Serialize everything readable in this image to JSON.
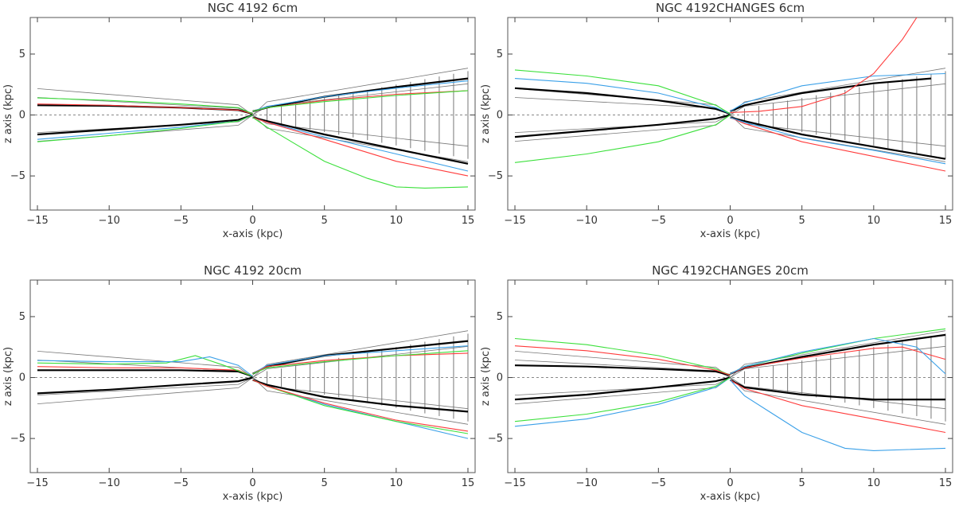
{
  "chart_data": [
    {
      "type": "line",
      "title": "NGC 4192 6cm",
      "xlabel": "x-axis (kpc)",
      "ylabel": "z axis (kpc)",
      "xlim": [
        -15.5,
        15.5
      ],
      "ylim": [
        -7.8,
        8
      ],
      "xticks": [
        -15,
        -10,
        -5,
        0,
        5,
        10,
        15
      ],
      "yticks": [
        -5,
        0,
        5
      ],
      "tick_labels_x": [
        "−15",
        "−10",
        "−5",
        "0",
        "5",
        "10",
        "15"
      ],
      "tick_labels_y": [
        "−5",
        "0",
        "5"
      ],
      "series": [
        {
          "name": "mean-upper-left",
          "color": "#000000",
          "x": [
            -15,
            -10,
            -5,
            -1,
            0
          ],
          "values": [
            0.8,
            0.75,
            0.6,
            0.4,
            0.1
          ]
        },
        {
          "name": "red-upper-left",
          "color": "#ff3b3b",
          "x": [
            -15,
            -10,
            -5,
            -1,
            0
          ],
          "values": [
            0.9,
            0.8,
            0.6,
            0.4,
            0.1
          ]
        },
        {
          "name": "green-upper-left",
          "color": "#3be03b",
          "x": [
            -15,
            -10,
            -5,
            -1,
            0
          ],
          "values": [
            1.4,
            1.2,
            0.9,
            0.6,
            0.1
          ]
        },
        {
          "name": "mean-lower-left",
          "color": "#000000",
          "x": [
            -15,
            -10,
            -5,
            -1,
            0
          ],
          "values": [
            -1.6,
            -1.2,
            -0.8,
            -0.4,
            0
          ]
        },
        {
          "name": "blue-lower-left",
          "color": "#3aa0e8",
          "x": [
            -15,
            -10,
            -5,
            -1,
            0
          ],
          "values": [
            -2.0,
            -1.5,
            -1.0,
            -0.5,
            0
          ]
        },
        {
          "name": "green-lower-left",
          "color": "#3be03b",
          "x": [
            -15,
            -10,
            -5,
            -1,
            0
          ],
          "values": [
            -2.2,
            -1.7,
            -1.1,
            -0.5,
            0
          ]
        },
        {
          "name": "mean-upper-right",
          "color": "#000000",
          "x": [
            0,
            1,
            5,
            10,
            15
          ],
          "values": [
            0.3,
            0.6,
            1.5,
            2.3,
            3.0
          ]
        },
        {
          "name": "blue-upper-right",
          "color": "#3aa0e8",
          "x": [
            0,
            1,
            5,
            10,
            15
          ],
          "values": [
            0.3,
            0.7,
            1.5,
            2.2,
            2.8
          ]
        },
        {
          "name": "red-upper-right",
          "color": "#ff3b3b",
          "x": [
            0,
            1,
            5,
            10,
            15
          ],
          "values": [
            0.3,
            0.6,
            1.2,
            1.7,
            2.0
          ]
        },
        {
          "name": "green-upper-right",
          "color": "#3be03b",
          "x": [
            0,
            1,
            5,
            10,
            15
          ],
          "values": [
            0.3,
            0.6,
            1.1,
            1.6,
            2.0
          ]
        },
        {
          "name": "mean-lower-right",
          "color": "#000000",
          "x": [
            0,
            1,
            5,
            10,
            15
          ],
          "values": [
            -0.2,
            -0.5,
            -1.6,
            -2.8,
            -4.0
          ]
        },
        {
          "name": "blue-lower-right",
          "color": "#3aa0e8",
          "x": [
            0,
            1,
            5,
            10,
            15
          ],
          "values": [
            -0.2,
            -0.6,
            -1.8,
            -3.2,
            -4.6
          ]
        },
        {
          "name": "red-lower-right",
          "color": "#ff3b3b",
          "x": [
            0,
            1,
            5,
            10,
            15
          ],
          "values": [
            -0.2,
            -0.6,
            -2.0,
            -3.8,
            -5.0
          ]
        },
        {
          "name": "green-lower-right",
          "color": "#3be03b",
          "x": [
            0,
            1,
            3,
            5,
            8,
            10,
            12,
            15
          ],
          "values": [
            -0.2,
            -1.0,
            -2.4,
            -3.8,
            -5.2,
            -5.9,
            -6.0,
            -5.9
          ]
        }
      ]
    },
    {
      "type": "line",
      "title": "NGC 4192CHANGES 6cm",
      "xlabel": "x-axis (kpc)",
      "ylabel": "z axis (kpc)",
      "xlim": [
        -15.5,
        15.5
      ],
      "ylim": [
        -7.8,
        8
      ],
      "xticks": [
        -15,
        -10,
        -5,
        0,
        5,
        10,
        15
      ],
      "yticks": [
        -5,
        0,
        5
      ],
      "tick_labels_x": [
        "−15",
        "−10",
        "−5",
        "0",
        "5",
        "10",
        "15"
      ],
      "tick_labels_y": [
        "−5",
        "0",
        "5"
      ],
      "series": [
        {
          "name": "mean-upper-left",
          "color": "#000000",
          "x": [
            -15,
            -10,
            -5,
            -1,
            0
          ],
          "values": [
            2.2,
            1.8,
            1.2,
            0.5,
            0.1
          ]
        },
        {
          "name": "blue-upper-left",
          "color": "#3aa0e8",
          "x": [
            -15,
            -10,
            -5,
            -1,
            0
          ],
          "values": [
            3.0,
            2.6,
            1.8,
            0.6,
            0.1
          ]
        },
        {
          "name": "green-upper-left",
          "color": "#3be03b",
          "x": [
            -15,
            -10,
            -5,
            -1,
            0
          ],
          "values": [
            3.7,
            3.2,
            2.4,
            0.8,
            0.1
          ]
        },
        {
          "name": "mean-lower-left",
          "color": "#000000",
          "x": [
            -15,
            -10,
            -5,
            -1,
            0
          ],
          "values": [
            -1.8,
            -1.3,
            -0.8,
            -0.3,
            0
          ]
        },
        {
          "name": "green-lower-left",
          "color": "#3be03b",
          "x": [
            -15,
            -10,
            -5,
            -1,
            0
          ],
          "values": [
            -3.9,
            -3.2,
            -2.2,
            -0.8,
            0
          ]
        },
        {
          "name": "mean-upper-right",
          "color": "#000000",
          "x": [
            0,
            1,
            5,
            10,
            14
          ],
          "values": [
            0.3,
            0.8,
            1.8,
            2.6,
            3.0
          ]
        },
        {
          "name": "blue-upper-right",
          "color": "#3aa0e8",
          "x": [
            0,
            1,
            5,
            10,
            15
          ],
          "values": [
            0.3,
            1.0,
            2.4,
            3.2,
            3.4
          ]
        },
        {
          "name": "red-upper-right",
          "color": "#ff3b3b",
          "x": [
            0,
            2,
            5,
            8,
            10,
            12,
            13
          ],
          "values": [
            0.2,
            0.3,
            0.7,
            1.8,
            3.4,
            6.2,
            8.0
          ]
        },
        {
          "name": "mean-lower-right",
          "color": "#000000",
          "x": [
            0,
            1,
            5,
            10,
            15
          ],
          "values": [
            -0.2,
            -0.5,
            -1.6,
            -2.6,
            -3.6
          ]
        },
        {
          "name": "red-lower-right",
          "color": "#ff3b3b",
          "x": [
            0,
            1,
            5,
            10,
            15
          ],
          "values": [
            -0.2,
            -0.7,
            -2.2,
            -3.4,
            -4.6
          ]
        },
        {
          "name": "blue-lower-right",
          "color": "#3aa0e8",
          "x": [
            0,
            1,
            5,
            10,
            15
          ],
          "values": [
            -0.2,
            -0.6,
            -1.9,
            -2.9,
            -4.0
          ]
        }
      ]
    },
    {
      "type": "line",
      "title": "NGC 4192 20cm",
      "xlabel": "x-axis (kpc)",
      "ylabel": "z axis (kpc)",
      "xlim": [
        -15.5,
        15.5
      ],
      "ylim": [
        -7.8,
        8
      ],
      "xticks": [
        -15,
        -10,
        -5,
        0,
        5,
        10,
        15
      ],
      "yticks": [
        -5,
        0,
        5
      ],
      "tick_labels_x": [
        "−15",
        "−10",
        "−5",
        "0",
        "5",
        "10",
        "15"
      ],
      "tick_labels_y": [
        "−5",
        "0",
        "5"
      ],
      "series": [
        {
          "name": "mean-upper-left",
          "color": "#000000",
          "x": [
            -15,
            -10,
            -5,
            -1,
            0
          ],
          "values": [
            0.6,
            0.6,
            0.6,
            0.5,
            0.1
          ]
        },
        {
          "name": "red-upper-left",
          "color": "#ff3b3b",
          "x": [
            -15,
            -10,
            -5,
            -1,
            0
          ],
          "values": [
            0.9,
            0.8,
            0.8,
            0.6,
            0.1
          ]
        },
        {
          "name": "green-upper-left",
          "color": "#3be03b",
          "x": [
            -15,
            -10,
            -6,
            -4,
            -2,
            0
          ],
          "values": [
            1.2,
            1.1,
            1.2,
            1.8,
            1.0,
            0.1
          ]
        },
        {
          "name": "blue-upper-left",
          "color": "#3aa0e8",
          "x": [
            -15,
            -10,
            -5,
            -3,
            -1,
            0
          ],
          "values": [
            1.4,
            1.3,
            1.3,
            1.7,
            1.0,
            0.1
          ]
        },
        {
          "name": "mean-lower-left",
          "color": "#000000",
          "x": [
            -15,
            -10,
            -5,
            -1,
            0
          ],
          "values": [
            -1.3,
            -1.0,
            -0.6,
            -0.3,
            0
          ]
        },
        {
          "name": "mean-upper-right",
          "color": "#000000",
          "x": [
            0,
            1,
            5,
            10,
            15
          ],
          "values": [
            0.3,
            0.9,
            1.8,
            2.4,
            3.0
          ]
        },
        {
          "name": "blue-upper-right",
          "color": "#3aa0e8",
          "x": [
            0,
            1,
            5,
            10,
            15
          ],
          "values": [
            0.3,
            1.0,
            1.8,
            2.2,
            2.6
          ]
        },
        {
          "name": "red-upper-right",
          "color": "#ff3b3b",
          "x": [
            0,
            1,
            5,
            10,
            15
          ],
          "values": [
            0.3,
            0.9,
            1.4,
            1.8,
            2.0
          ]
        },
        {
          "name": "green-upper-right",
          "color": "#3be03b",
          "x": [
            0,
            1,
            5,
            10,
            15
          ],
          "values": [
            0.3,
            0.8,
            1.3,
            1.8,
            2.2
          ]
        },
        {
          "name": "mean-lower-right",
          "color": "#000000",
          "x": [
            0,
            1,
            5,
            10,
            15
          ],
          "values": [
            -0.2,
            -0.6,
            -1.6,
            -2.3,
            -2.8
          ]
        },
        {
          "name": "blue-lower-right",
          "color": "#3aa0e8",
          "x": [
            0,
            1,
            5,
            10,
            15
          ],
          "values": [
            -0.2,
            -0.7,
            -2.2,
            -3.6,
            -5.0
          ]
        },
        {
          "name": "green-lower-right",
          "color": "#3be03b",
          "x": [
            0,
            1,
            5,
            10,
            15
          ],
          "values": [
            -0.2,
            -0.7,
            -2.3,
            -3.6,
            -4.6
          ]
        },
        {
          "name": "red-lower-right",
          "color": "#ff3b3b",
          "x": [
            0,
            1,
            5,
            10,
            15
          ],
          "values": [
            -0.2,
            -0.7,
            -2.1,
            -3.5,
            -4.4
          ]
        }
      ]
    },
    {
      "type": "line",
      "title": "NGC 4192CHANGES 20cm",
      "xlabel": "x-axis (kpc)",
      "ylabel": "z axis (kpc)",
      "xlim": [
        -15.5,
        15.5
      ],
      "ylim": [
        -7.8,
        8
      ],
      "xticks": [
        -15,
        -10,
        -5,
        0,
        5,
        10,
        15
      ],
      "yticks": [
        -5,
        0,
        5
      ],
      "tick_labels_x": [
        "−15",
        "−10",
        "−5",
        "0",
        "5",
        "10",
        "15"
      ],
      "tick_labels_y": [
        "−5",
        "0",
        "5"
      ],
      "series": [
        {
          "name": "mean-upper-left",
          "color": "#000000",
          "x": [
            -15,
            -10,
            -5,
            -1,
            0
          ],
          "values": [
            1.0,
            0.9,
            0.7,
            0.5,
            0.2
          ]
        },
        {
          "name": "green-upper-left",
          "color": "#3be03b",
          "x": [
            -15,
            -10,
            -5,
            -1,
            0
          ],
          "values": [
            3.2,
            2.7,
            1.8,
            0.7,
            0.2
          ]
        },
        {
          "name": "red-upper-left",
          "color": "#ff3b3b",
          "x": [
            -15,
            -10,
            -5,
            -1,
            0
          ],
          "values": [
            2.6,
            2.2,
            1.5,
            0.6,
            0.2
          ]
        },
        {
          "name": "mean-lower-left",
          "color": "#000000",
          "x": [
            -15,
            -10,
            -5,
            -1,
            0
          ],
          "values": [
            -1.8,
            -1.4,
            -0.8,
            -0.3,
            0
          ]
        },
        {
          "name": "blue-lower-left",
          "color": "#3aa0e8",
          "x": [
            -15,
            -10,
            -5,
            -1,
            0
          ],
          "values": [
            -4.0,
            -3.4,
            -2.2,
            -0.8,
            0
          ]
        },
        {
          "name": "green-lower-left",
          "color": "#3be03b",
          "x": [
            -15,
            -10,
            -5,
            -1,
            0
          ],
          "values": [
            -3.6,
            -3.0,
            -2.0,
            -0.7,
            0
          ]
        },
        {
          "name": "mean-upper-right",
          "color": "#000000",
          "x": [
            0,
            1,
            5,
            10,
            15
          ],
          "values": [
            0.3,
            0.8,
            1.7,
            2.7,
            3.5
          ]
        },
        {
          "name": "green-upper-right",
          "color": "#3be03b",
          "x": [
            0,
            1,
            5,
            10,
            15
          ],
          "values": [
            0.3,
            0.9,
            2.0,
            3.2,
            4.0
          ]
        },
        {
          "name": "red-upper-right",
          "color": "#ff3b3b",
          "x": [
            0,
            1,
            5,
            10,
            12,
            15
          ],
          "values": [
            0.3,
            0.8,
            1.6,
            2.4,
            2.5,
            1.5
          ]
        },
        {
          "name": "blue-upper-right",
          "color": "#3aa0e8",
          "x": [
            0,
            1,
            5,
            10,
            13,
            15
          ],
          "values": [
            0.3,
            0.9,
            2.1,
            3.2,
            2.5,
            0.3
          ]
        },
        {
          "name": "mean-lower-right",
          "color": "#000000",
          "x": [
            0,
            1,
            5,
            10,
            15
          ],
          "values": [
            -0.2,
            -0.8,
            -1.4,
            -1.8,
            -1.8
          ]
        },
        {
          "name": "red-lower-right",
          "color": "#ff3b3b",
          "x": [
            0,
            1,
            5,
            10,
            15
          ],
          "values": [
            -0.2,
            -0.9,
            -2.3,
            -3.4,
            -4.5
          ]
        },
        {
          "name": "blue-lower-right",
          "color": "#3aa0e8",
          "x": [
            0,
            1,
            3,
            5,
            8,
            10,
            15
          ],
          "values": [
            -0.2,
            -1.5,
            -3.0,
            -4.5,
            -5.8,
            -6.0,
            -5.8
          ]
        }
      ]
    }
  ]
}
